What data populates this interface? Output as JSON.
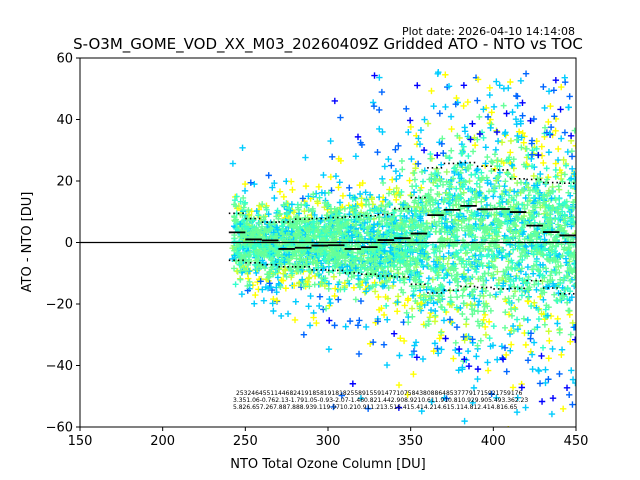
{
  "plot_date": "Plot date: 2026-04-10 14:14:08",
  "chart_data": {
    "type": "scatter",
    "title": "S-O3M_GOME_VOD_XX_M03_20260409Z Gridded ATO - NTO vs TOC",
    "xlabel": "NTO Total Ozone Column [DU]",
    "ylabel": "ATO - NTO [DU]",
    "xlim": [
      150,
      450
    ],
    "ylim": [
      -60,
      60
    ],
    "xticks": [
      150,
      200,
      250,
      300,
      350,
      400,
      450
    ],
    "yticks": [
      -60,
      -40,
      -20,
      0,
      20,
      40,
      60
    ],
    "xtick_labels": [
      "150",
      "200",
      "250",
      "300",
      "350",
      "400",
      "450"
    ],
    "ytick_labels": [
      "−60",
      "−40",
      "−20",
      "0",
      "20",
      "40",
      "60"
    ],
    "zero_line": 0,
    "point_colors": {
      "dense": "#66ff99",
      "mid": "#00ccff",
      "light": "#33ffcc",
      "yellow": "#ffff00",
      "yellowgreen": "#ccff33",
      "lightgreen": "#99ff66",
      "blue": "#0066ff",
      "darkblue": "#0000ff"
    },
    "bins": [
      {
        "x": 245,
        "median": 3.3,
        "low": -5.8,
        "high": 9.5
      },
      {
        "x": 255,
        "median": 1.0,
        "low": -6.6,
        "high": 7.8
      },
      {
        "x": 265,
        "median": 0.7,
        "low": -7.2,
        "high": 6.6
      },
      {
        "x": 275,
        "median": -2.1,
        "low": -7.9,
        "high": 6.7
      },
      {
        "x": 285,
        "median": -1.7,
        "low": -7.9,
        "high": 7.6
      },
      {
        "x": 295,
        "median": -1.0,
        "low": -8.9,
        "high": 7.8
      },
      {
        "x": 305,
        "median": -0.9,
        "low": -9.1,
        "high": 8.1
      },
      {
        "x": 315,
        "median": -2.1,
        "low": -9.9,
        "high": 8.3
      },
      {
        "x": 325,
        "median": -1.5,
        "low": -10.3,
        "high": 8.7
      },
      {
        "x": 335,
        "median": 0.8,
        "low": -10.9,
        "high": 9.1
      },
      {
        "x": 345,
        "median": 1.4,
        "low": -11.2,
        "high": 11.0
      },
      {
        "x": 355,
        "median": 2.9,
        "low": -13.6,
        "high": 14.6
      },
      {
        "x": 365,
        "median": 8.9,
        "low": -16.4,
        "high": 24.3
      },
      {
        "x": 375,
        "median": 10.6,
        "low": -15.5,
        "high": 25.7
      },
      {
        "x": 385,
        "median": 11.9,
        "low": -14.3,
        "high": 26.0
      },
      {
        "x": 395,
        "median": 10.8,
        "low": -14.6,
        "high": 24.8
      },
      {
        "x": 405,
        "median": 10.9,
        "low": -15.1,
        "high": 23.6
      },
      {
        "x": 415,
        "median": 9.9,
        "low": -14.9,
        "high": 20.7
      },
      {
        "x": 425,
        "median": 5.5,
        "low": -12.4,
        "high": 20.5
      },
      {
        "x": 435,
        "median": 3.4,
        "low": -14.8,
        "high": 19.5
      },
      {
        "x": 445,
        "median": 2.3,
        "low": -16.7,
        "high": 19.3
      }
    ],
    "stats_rows": [
      "253246455114468241918581918182558915591477107584380886485377791715921759176",
      "3.351.06-0.762.13-1.791.05-0.93-2.07-1.460.821.442.908.9210.611.910.810.929.905.493.362.23",
      "5.826.657.267.887.888.939.119.9710.210.911.213.516.415.414.214.615.114.812.414.816.65"
    ]
  }
}
